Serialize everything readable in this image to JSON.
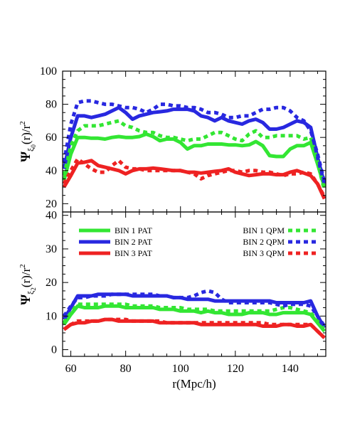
{
  "chart_data": [
    {
      "type": "line",
      "ylabel_main": "Ψ",
      "ylabel_sub": "ξ",
      "ylabel_subsub": "0",
      "ylabel_tail": "(r)/r",
      "ylabel_sup": "2",
      "xlim": [
        57,
        153
      ],
      "ylim": [
        15,
        100
      ],
      "xticks": [
        60,
        80,
        100,
        120,
        140
      ],
      "yticks": [
        20,
        40,
        60,
        80,
        100
      ],
      "series": [
        {
          "name": "BIN 1 PAT",
          "color": "#33e633",
          "style": "solid",
          "x": [
            57.5,
            60,
            62.5,
            65,
            67.5,
            70,
            72.5,
            75,
            77.5,
            80,
            82.5,
            85,
            87.5,
            90,
            92.5,
            95,
            97.5,
            100,
            102.5,
            105,
            107.5,
            110,
            112.5,
            115,
            117.5,
            120,
            122.5,
            125,
            127.5,
            130,
            132.5,
            135,
            137.5,
            140,
            142.5,
            145,
            147.5,
            150,
            152.5
          ],
          "y": [
            34,
            50,
            60,
            60,
            59.5,
            59.5,
            59,
            60,
            60.5,
            60,
            60,
            60.5,
            62,
            60.5,
            58,
            59,
            59,
            57,
            53,
            55,
            55,
            56,
            56,
            56,
            55.5,
            55.5,
            55,
            55.5,
            57.5,
            55,
            49,
            48.5,
            48.5,
            53,
            55,
            55,
            57,
            44,
            30
          ]
        },
        {
          "name": "BIN 2 PAT",
          "color": "#2828e0",
          "style": "solid",
          "x": [
            57.5,
            60,
            62.5,
            65,
            67.5,
            70,
            72.5,
            75,
            77.5,
            80,
            82.5,
            85,
            87.5,
            90,
            92.5,
            95,
            97.5,
            100,
            102.5,
            105,
            107.5,
            110,
            112.5,
            115,
            117.5,
            120,
            122.5,
            125,
            127.5,
            130,
            132.5,
            135,
            137.5,
            140,
            142.5,
            145,
            147.5,
            150,
            152.5
          ],
          "y": [
            41,
            60,
            73,
            73,
            72,
            73,
            74,
            76,
            78,
            75,
            71,
            73,
            74,
            75,
            75.5,
            76,
            77,
            77,
            77,
            76,
            73,
            72,
            70,
            72,
            70,
            69,
            68,
            70,
            71,
            69,
            65,
            65,
            66,
            68,
            70,
            69,
            66,
            48,
            32
          ]
        },
        {
          "name": "BIN 3 PAT",
          "color": "#ee2222",
          "style": "solid",
          "x": [
            57.5,
            60,
            62.5,
            65,
            67.5,
            70,
            72.5,
            75,
            77.5,
            80,
            82.5,
            85,
            87.5,
            90,
            92.5,
            95,
            97.5,
            100,
            102.5,
            105,
            107.5,
            110,
            112.5,
            115,
            117.5,
            120,
            122.5,
            125,
            127.5,
            130,
            132.5,
            135,
            137.5,
            140,
            142.5,
            145,
            147.5,
            150,
            152.5
          ],
          "y": [
            30,
            37,
            44.5,
            45,
            46,
            43,
            42,
            41,
            40,
            38,
            40,
            41,
            41,
            41.5,
            41,
            40.5,
            40,
            40,
            39,
            39,
            38.5,
            39,
            39.5,
            40,
            41,
            39,
            38,
            37,
            37.5,
            38,
            38,
            37.5,
            37.5,
            39,
            40,
            38.5,
            37,
            32,
            23
          ]
        },
        {
          "name": "BIN 1 QPM",
          "color": "#33e633",
          "style": "dashed",
          "x": [
            57.5,
            60,
            62.5,
            65,
            67.5,
            70,
            72.5,
            75,
            77.5,
            80,
            82.5,
            85,
            87.5,
            90,
            92.5,
            95,
            97.5,
            100,
            102.5,
            105,
            107.5,
            110,
            112.5,
            115,
            117.5,
            120,
            122.5,
            125,
            127.5,
            130,
            132.5,
            135,
            137.5,
            140,
            142.5,
            145,
            147.5,
            150,
            152.5
          ],
          "y": [
            37,
            55,
            64,
            67,
            67,
            67,
            68,
            69,
            70,
            67,
            66,
            64,
            63,
            63,
            61,
            60,
            60,
            59,
            58,
            59,
            59,
            61,
            63,
            63,
            61,
            59,
            58,
            62,
            64,
            60,
            60,
            61,
            61,
            61,
            61,
            59,
            60,
            45,
            28
          ]
        },
        {
          "name": "BIN 2 QPM",
          "color": "#2828e0",
          "style": "dashed",
          "x": [
            57.5,
            60,
            62.5,
            65,
            67.5,
            70,
            72.5,
            75,
            77.5,
            80,
            82.5,
            85,
            87.5,
            90,
            92.5,
            95,
            97.5,
            100,
            102.5,
            105,
            107.5,
            110,
            112.5,
            115,
            117.5,
            120,
            122.5,
            125,
            127.5,
            130,
            132.5,
            135,
            137.5,
            140,
            142.5,
            145,
            147.5,
            150,
            152.5
          ],
          "y": [
            45,
            68,
            81,
            82,
            82,
            81,
            80,
            80,
            79,
            78,
            78,
            77,
            75,
            77,
            80,
            80,
            79,
            79,
            78,
            78,
            77,
            75,
            75,
            74,
            72,
            72,
            73,
            73,
            75,
            77,
            77,
            78,
            78,
            76,
            72,
            70,
            64,
            50,
            33
          ]
        },
        {
          "name": "BIN 3 QPM",
          "color": "#ee2222",
          "style": "dashed",
          "x": [
            57.5,
            60,
            62.5,
            65,
            67.5,
            70,
            72.5,
            75,
            77.5,
            80,
            82.5,
            85,
            87.5,
            90,
            92.5,
            95,
            97.5,
            100,
            102.5,
            105,
            107.5,
            110,
            112.5,
            115,
            117.5,
            120,
            122.5,
            125,
            127.5,
            130,
            132.5,
            135,
            137.5,
            140,
            142.5,
            145,
            147.5,
            150,
            152.5
          ],
          "y": [
            32,
            40,
            47,
            44,
            41,
            39,
            39,
            43,
            46,
            42,
            41,
            41,
            40,
            40,
            40,
            40,
            40,
            40,
            39,
            38,
            35,
            37,
            38,
            39,
            40,
            40,
            39,
            40,
            40,
            39,
            39,
            38,
            37,
            38,
            38,
            39,
            38,
            32,
            24
          ]
        }
      ]
    },
    {
      "type": "line",
      "ylabel_main": "Ψ",
      "ylabel_sub": "ξ",
      "ylabel_subsub": "2",
      "ylabel_tail": "(r)/r",
      "ylabel_sup": "2",
      "xlabel": "r(Mpc/h)",
      "xlim": [
        57,
        153
      ],
      "ylim": [
        -2,
        41
      ],
      "xticks": [
        60,
        80,
        100,
        120,
        140
      ],
      "yticks": [
        0,
        10,
        20,
        30,
        40
      ],
      "legend_position": "top",
      "series": [
        {
          "name": "BIN 1 PAT",
          "color": "#33e633",
          "style": "solid",
          "x": [
            57.5,
            60,
            62.5,
            65,
            67.5,
            70,
            72.5,
            75,
            77.5,
            80,
            82.5,
            85,
            87.5,
            90,
            92.5,
            95,
            97.5,
            100,
            102.5,
            105,
            107.5,
            110,
            112.5,
            115,
            117.5,
            120,
            122.5,
            125,
            127.5,
            130,
            132.5,
            135,
            137.5,
            140,
            142.5,
            145,
            147.5,
            150,
            152.5
          ],
          "y": [
            7.5,
            10.5,
            13,
            12.5,
            12.5,
            12.5,
            13,
            13,
            13,
            12.5,
            12.5,
            12.5,
            12.5,
            12.5,
            12,
            12,
            12,
            11.5,
            11.5,
            11.5,
            11,
            11.5,
            11,
            11,
            10.5,
            10.5,
            10.5,
            11,
            11,
            11,
            10.5,
            10.5,
            11,
            11,
            11,
            11,
            10.5,
            8,
            5.5
          ]
        },
        {
          "name": "BIN 2 PAT",
          "color": "#2828e0",
          "style": "solid",
          "x": [
            57.5,
            60,
            62.5,
            65,
            67.5,
            70,
            72.5,
            75,
            77.5,
            80,
            82.5,
            85,
            87.5,
            90,
            92.5,
            95,
            97.5,
            100,
            102.5,
            105,
            107.5,
            110,
            112.5,
            115,
            117.5,
            120,
            122.5,
            125,
            127.5,
            130,
            132.5,
            135,
            137.5,
            140,
            142.5,
            145,
            147.5,
            150,
            152.5
          ],
          "y": [
            9,
            12.5,
            16,
            16,
            16,
            16.5,
            16.5,
            16.5,
            16.5,
            16.5,
            16,
            16,
            16,
            16,
            16,
            16,
            15.5,
            15.5,
            15,
            15,
            15,
            15,
            14.5,
            14.5,
            14.5,
            14.5,
            14.5,
            14.5,
            14.5,
            14.5,
            14.5,
            14,
            14,
            14,
            14,
            14,
            14.5,
            10,
            6.5
          ]
        },
        {
          "name": "BIN 3 PAT",
          "color": "#ee2222",
          "style": "solid",
          "x": [
            57.5,
            60,
            62.5,
            65,
            67.5,
            70,
            72.5,
            75,
            77.5,
            80,
            82.5,
            85,
            87.5,
            90,
            92.5,
            95,
            97.5,
            100,
            102.5,
            105,
            107.5,
            110,
            112.5,
            115,
            117.5,
            120,
            122.5,
            125,
            127.5,
            130,
            132.5,
            135,
            137.5,
            140,
            142.5,
            145,
            147.5,
            150,
            152.5
          ],
          "y": [
            6,
            7.5,
            8,
            8,
            8.5,
            8.5,
            9,
            9,
            8.5,
            8.5,
            8.5,
            8.5,
            8.5,
            8.5,
            8,
            8,
            8,
            8,
            8,
            8,
            7.5,
            7.5,
            7.5,
            7.5,
            7.5,
            7.5,
            7.5,
            7.5,
            7.5,
            7,
            7,
            7,
            7.5,
            7.5,
            7,
            7,
            7.5,
            5.5,
            3.5
          ]
        },
        {
          "name": "BIN 1 QPM",
          "color": "#33e633",
          "style": "dashed",
          "x": [
            57.5,
            60,
            62.5,
            65,
            67.5,
            70,
            72.5,
            75,
            77.5,
            80,
            82.5,
            85,
            87.5,
            90,
            92.5,
            95,
            97.5,
            100,
            102.5,
            105,
            107.5,
            110,
            112.5,
            115,
            117.5,
            120,
            122.5,
            125,
            127.5,
            130,
            132.5,
            135,
            137.5,
            140,
            142.5,
            145,
            147.5,
            150,
            152.5
          ],
          "y": [
            8,
            11,
            13.5,
            13.5,
            13.5,
            13.5,
            13.5,
            13.5,
            13.5,
            13.5,
            13,
            13,
            13,
            13,
            12.5,
            12.5,
            12.5,
            12.5,
            12,
            12,
            12,
            12,
            11.5,
            11.5,
            11.5,
            11.5,
            11.5,
            11.5,
            11.5,
            11.5,
            11.5,
            12,
            12.5,
            12.5,
            12,
            11.5,
            11,
            8.5,
            6
          ]
        },
        {
          "name": "BIN 2 QPM",
          "color": "#2828e0",
          "style": "dashed",
          "x": [
            57.5,
            60,
            62.5,
            65,
            67.5,
            70,
            72.5,
            75,
            77.5,
            80,
            82.5,
            85,
            87.5,
            90,
            92.5,
            95,
            97.5,
            100,
            102.5,
            105,
            107.5,
            110,
            112.5,
            115,
            117.5,
            120,
            122.5,
            125,
            127.5,
            130,
            132.5,
            135,
            137.5,
            140,
            142.5,
            145,
            147.5,
            150,
            152.5
          ],
          "y": [
            10,
            13,
            15.5,
            15.5,
            16,
            16,
            16,
            16.5,
            16.5,
            16.5,
            16.5,
            16.5,
            16.5,
            16.5,
            16,
            16,
            15.5,
            15.5,
            15.5,
            16,
            17,
            17.5,
            17,
            15,
            14,
            14,
            14,
            14,
            14,
            14,
            14,
            13.5,
            13,
            13.5,
            13.5,
            13.5,
            13,
            10,
            7
          ]
        },
        {
          "name": "BIN 3 QPM",
          "color": "#ee2222",
          "style": "dashed",
          "x": [
            57.5,
            60,
            62.5,
            65,
            67.5,
            70,
            72.5,
            75,
            77.5,
            80,
            82.5,
            85,
            87.5,
            90,
            92.5,
            95,
            97.5,
            100,
            102.5,
            105,
            107.5,
            110,
            112.5,
            115,
            117.5,
            120,
            122.5,
            125,
            127.5,
            130,
            132.5,
            135,
            137.5,
            140,
            142.5,
            145,
            147.5,
            150,
            152.5
          ],
          "y": [
            6,
            7.5,
            8.5,
            8.5,
            8.5,
            8.5,
            9,
            9,
            9,
            9,
            8.5,
            8.5,
            8.5,
            8.5,
            8.5,
            8,
            8,
            8,
            8,
            8,
            8,
            8,
            8,
            8,
            8,
            8,
            8,
            8,
            8,
            8,
            7.5,
            7.5,
            7.5,
            7.5,
            7.5,
            7.5,
            7.5,
            5.5,
            3.5
          ]
        }
      ]
    }
  ]
}
